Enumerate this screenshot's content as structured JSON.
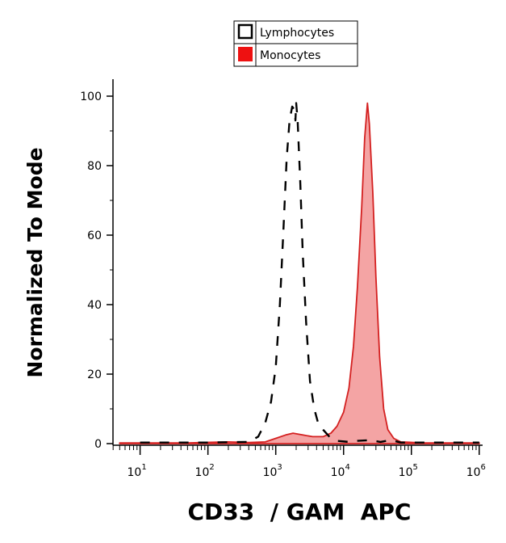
{
  "chart_data": {
    "type": "histogram",
    "xlabel": "CD33  / GAM  APC",
    "ylabel": "Normalized To Mode",
    "x_scale": "log",
    "x_range_exponent": [
      0.6,
      6.05
    ],
    "ylim": [
      0,
      105
    ],
    "x_ticks": [
      {
        "base": "10",
        "exp": "1",
        "value": 10
      },
      {
        "base": "10",
        "exp": "2",
        "value": 100
      },
      {
        "base": "10",
        "exp": "3",
        "value": 1000
      },
      {
        "base": "10",
        "exp": "4",
        "value": 10000
      },
      {
        "base": "10",
        "exp": "5",
        "value": 100000
      },
      {
        "base": "10",
        "exp": "6",
        "value": 1000000
      }
    ],
    "y_ticks": [
      {
        "label": "0",
        "value": 0
      },
      {
        "label": "20",
        "value": 20
      },
      {
        "label": "40",
        "value": 40
      },
      {
        "label": "60",
        "value": 60
      },
      {
        "label": "80",
        "value": 80
      },
      {
        "label": "100",
        "value": 100
      }
    ],
    "legend": {
      "position": "top-center",
      "entries": [
        {
          "name": "Lymphocytes",
          "style": "outline",
          "color": "#000000"
        },
        {
          "name": "Monocytes",
          "style": "filled",
          "color": "#ee1111"
        }
      ]
    },
    "series": [
      {
        "name": "Lymphocytes",
        "style": "dashed-line",
        "color": "#000000",
        "points": [
          [
            10,
            0.3
          ],
          [
            100,
            0.3
          ],
          [
            400,
            0.5
          ],
          [
            550,
            2
          ],
          [
            700,
            6
          ],
          [
            850,
            12
          ],
          [
            1000,
            22
          ],
          [
            1150,
            40
          ],
          [
            1300,
            62
          ],
          [
            1450,
            82
          ],
          [
            1600,
            93
          ],
          [
            1750,
            97
          ],
          [
            1900,
            96
          ],
          [
            1950,
            93
          ],
          [
            2000,
            98
          ],
          [
            2100,
            93
          ],
          [
            2300,
            75
          ],
          [
            2500,
            55
          ],
          [
            2800,
            35
          ],
          [
            3200,
            18
          ],
          [
            3700,
            10
          ],
          [
            4200,
            6
          ],
          [
            5000,
            4
          ],
          [
            6500,
            1.5
          ],
          [
            8000,
            0.8
          ],
          [
            12000,
            0.5
          ],
          [
            16000,
            0.8
          ],
          [
            25000,
            1
          ],
          [
            35000,
            0.5
          ],
          [
            50000,
            1
          ],
          [
            70000,
            0.3
          ],
          [
            1000000,
            0.3
          ]
        ]
      },
      {
        "name": "Monocytes",
        "style": "filled-area",
        "color": "#ee1111",
        "fill": "#f4a4a4",
        "points": [
          [
            5,
            0.2
          ],
          [
            50,
            0.2
          ],
          [
            200,
            0.5
          ],
          [
            400,
            0.3
          ],
          [
            700,
            0.5
          ],
          [
            1000,
            1.5
          ],
          [
            1400,
            2.5
          ],
          [
            1800,
            3
          ],
          [
            2500,
            2.5
          ],
          [
            3500,
            2
          ],
          [
            5000,
            2
          ],
          [
            6500,
            3
          ],
          [
            8000,
            5
          ],
          [
            10000,
            9
          ],
          [
            12000,
            16
          ],
          [
            14000,
            28
          ],
          [
            16000,
            45
          ],
          [
            18500,
            68
          ],
          [
            20500,
            88
          ],
          [
            22500,
            98
          ],
          [
            24000,
            92
          ],
          [
            27000,
            72
          ],
          [
            30000,
            48
          ],
          [
            34000,
            25
          ],
          [
            39000,
            10
          ],
          [
            45000,
            4
          ],
          [
            55000,
            1.5
          ],
          [
            70000,
            0.5
          ],
          [
            150000,
            0.2
          ],
          [
            1000000,
            0.2
          ]
        ]
      }
    ]
  }
}
